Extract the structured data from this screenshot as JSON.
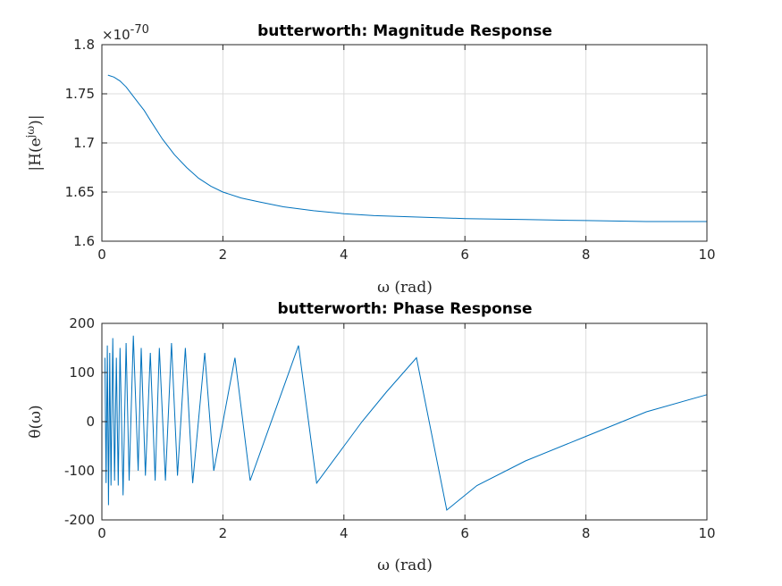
{
  "chart_data": [
    {
      "type": "line",
      "title": "butterworth: Magnitude Response",
      "xlabel": "ω (rad)",
      "ylabel": "|H(e^{jω})|",
      "ylabel_parts": [
        "|H(e",
        "jω",
        ")|"
      ],
      "exponent_label": "×10",
      "exponent_power": "-70",
      "xlim": [
        0,
        10
      ],
      "ylim": [
        1.6,
        1.8
      ],
      "xticks": [
        0,
        2,
        4,
        6,
        8,
        10
      ],
      "yticks": [
        1.6,
        1.65,
        1.7,
        1.75,
        1.8
      ],
      "ytick_labels": [
        "1.6",
        "1.65",
        "1.7",
        "1.75",
        "1.8"
      ],
      "grid": true,
      "color": "#0072bd",
      "series": [
        {
          "x": [
            0.1,
            0.2,
            0.3,
            0.4,
            0.5,
            0.6,
            0.7,
            0.8,
            1.0,
            1.2,
            1.4,
            1.6,
            1.8,
            2.0,
            2.3,
            2.6,
            3.0,
            3.5,
            4.0,
            4.5,
            5.0,
            5.5,
            6.0,
            7.0,
            8.0,
            9.0,
            10.0
          ],
          "y": [
            1.769,
            1.767,
            1.763,
            1.757,
            1.749,
            1.741,
            1.733,
            1.723,
            1.704,
            1.688,
            1.675,
            1.664,
            1.656,
            1.65,
            1.644,
            1.64,
            1.635,
            1.631,
            1.628,
            1.626,
            1.625,
            1.624,
            1.623,
            1.622,
            1.621,
            1.62,
            1.62
          ]
        }
      ]
    },
    {
      "type": "line",
      "title": "butterworth: Phase Response",
      "xlabel": "ω (rad)",
      "ylabel": "θ(ω)",
      "xlim": [
        0,
        10
      ],
      "ylim": [
        -200,
        200
      ],
      "xticks": [
        0,
        2,
        4,
        6,
        8,
        10
      ],
      "yticks": [
        -200,
        -100,
        0,
        100,
        200
      ],
      "ytick_labels": [
        "-200",
        "-100",
        "0",
        "100",
        "200"
      ],
      "grid": true,
      "color": "#0072bd",
      "series": [
        {
          "x": [
            0.05,
            0.07,
            0.09,
            0.11,
            0.13,
            0.15,
            0.18,
            0.21,
            0.24,
            0.27,
            0.3,
            0.35,
            0.4,
            0.45,
            0.52,
            0.6,
            0.65,
            0.72,
            0.8,
            0.88,
            0.95,
            1.05,
            1.15,
            1.25,
            1.38,
            1.5,
            1.7,
            1.85,
            2.2,
            2.45,
            3.25,
            3.55,
            4.0,
            4.3,
            4.7,
            5.2,
            5.7,
            6.2,
            7.0,
            8.0,
            9.0,
            10.0
          ],
          "y": [
            130,
            -125,
            155,
            -170,
            140,
            -130,
            170,
            -120,
            130,
            -130,
            150,
            -150,
            160,
            -120,
            175,
            -100,
            150,
            -110,
            140,
            -120,
            150,
            -120,
            160,
            -110,
            150,
            -125,
            140,
            -100,
            130,
            -120,
            155,
            -125,
            -50,
            0,
            60,
            130,
            -180,
            -130,
            -80,
            -30,
            20,
            55
          ]
        }
      ]
    }
  ]
}
